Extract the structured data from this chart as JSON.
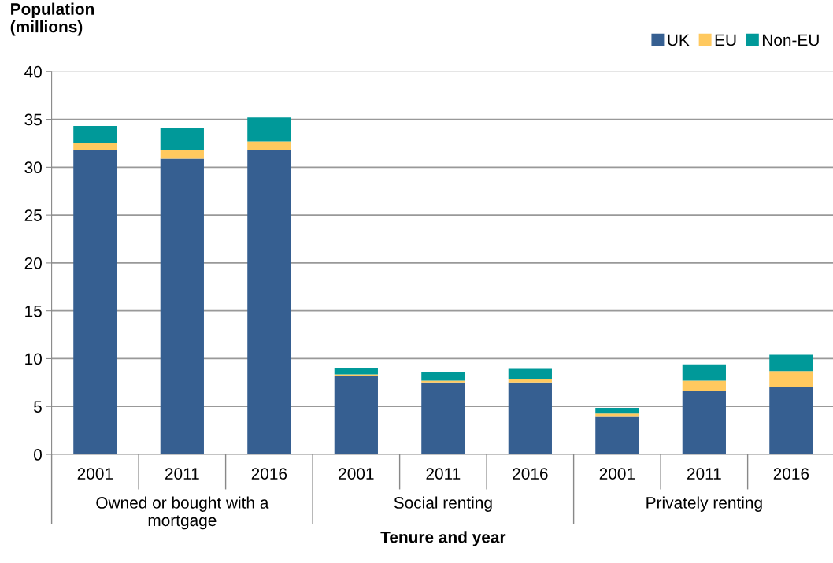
{
  "chart_data": {
    "type": "bar",
    "stacked": true,
    "ylabel": "Population\n(millions)",
    "xlabel": "Tenure and year",
    "categories": [
      "2001",
      "2011",
      "2016",
      "2001",
      "2011",
      "2016",
      "2001",
      "2011",
      "2016"
    ],
    "annotations": [
      "Owned or bought with a\nmortgage",
      "Social renting",
      "Privately renting"
    ],
    "series": [
      {
        "name": "UK",
        "color": "#365f91",
        "values": [
          31.8,
          30.9,
          31.8,
          8.2,
          7.5,
          7.5,
          4.0,
          6.6,
          7.0
        ]
      },
      {
        "name": "EU",
        "color": "#ffc95f",
        "values": [
          0.7,
          0.9,
          0.9,
          0.15,
          0.2,
          0.4,
          0.25,
          1.1,
          1.7
        ]
      },
      {
        "name": "Non-EU",
        "color": "#009999",
        "values": [
          1.8,
          2.3,
          2.5,
          0.7,
          0.9,
          1.1,
          0.6,
          1.7,
          1.7
        ]
      }
    ],
    "ylim": [
      0,
      40
    ],
    "yticks": [
      0,
      5,
      10,
      15,
      20,
      25,
      30,
      35,
      40
    ],
    "grid": "y",
    "legend": "top right"
  }
}
